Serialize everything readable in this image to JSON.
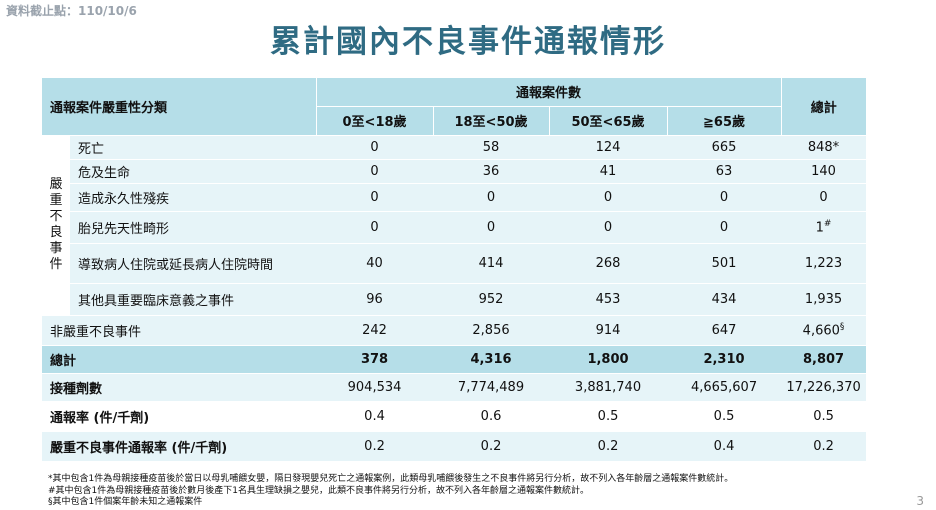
{
  "cutoff": "資料截止點：110/10/6",
  "title": "累計國內不良事件通報情形",
  "header": {
    "category": "通報案件嚴重性分類",
    "group": "通報案件數",
    "total": "總計",
    "ages": [
      "0至<18歲",
      "18至<50歲",
      "50至<65歲",
      "≧65歲"
    ]
  },
  "serious_label_chars": [
    "嚴",
    "重",
    "不",
    "良",
    "事",
    "件"
  ],
  "serious_rows": [
    {
      "label": "死亡",
      "values": [
        "0",
        "58",
        "124",
        "665"
      ],
      "total": "848*",
      "mark": ""
    },
    {
      "label": "危及生命",
      "values": [
        "0",
        "36",
        "41",
        "63"
      ],
      "total": "140",
      "mark": ""
    },
    {
      "label": "造成永久性殘疾",
      "values": [
        "0",
        "0",
        "0",
        "0"
      ],
      "total": "0",
      "mark": ""
    },
    {
      "label": "胎兒先天性畸形",
      "values": [
        "0",
        "0",
        "0",
        "0"
      ],
      "total": "1",
      "mark": "#"
    },
    {
      "label": "導致病人住院或延長病人住院時間",
      "values": [
        "40",
        "414",
        "268",
        "501"
      ],
      "total": "1,223",
      "mark": ""
    },
    {
      "label": "其他具重要臨床意義之事件",
      "values": [
        "96",
        "952",
        "453",
        "434"
      ],
      "total": "1,935",
      "mark": ""
    }
  ],
  "nonserious": {
    "label": "非嚴重不良事件",
    "values": [
      "242",
      "2,856",
      "914",
      "647"
    ],
    "total": "4,660",
    "mark": "§"
  },
  "sum": {
    "label": "總計",
    "values": [
      "378",
      "4,316",
      "1,800",
      "2,310"
    ],
    "total": "8,807"
  },
  "doses": {
    "label": "接種劑數",
    "values": [
      "904,534",
      "7,774,489",
      "3,881,740",
      "4,665,607"
    ],
    "total": "17,226,370"
  },
  "rate": {
    "label": "通報率 (件/千劑)",
    "values": [
      "0.4",
      "0.6",
      "0.5",
      "0.5"
    ],
    "total": "0.5"
  },
  "serious_rate": {
    "label": "嚴重不良事件通報率 (件/千劑)",
    "values": [
      "0.2",
      "0.2",
      "0.2",
      "0.4"
    ],
    "total": "0.2"
  },
  "footnotes": [
    "*其中包含1件為母親接種疫苗後於當日以母乳哺餵女嬰，隔日發現嬰兒死亡之通報案例，此類母乳哺餵後發生之不良事件將另行分析，故不列入各年齡層之通報案件數統計。",
    "#其中包含1件為母親接種疫苗後於數月後產下1名具生理缺損之嬰兒，此類不良事件將另行分析，故不列入各年齡層之通報案件數統計。",
    "§其中包含1件個案年齡未知之通報案件"
  ],
  "page_number": "3"
}
